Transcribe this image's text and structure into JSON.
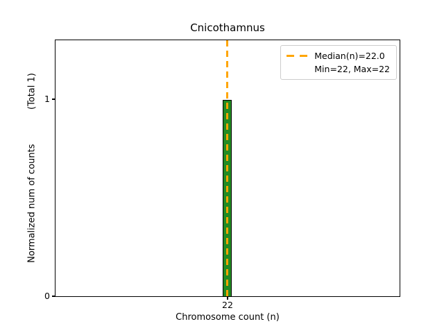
{
  "figure": {
    "title": "Cnicothamnus",
    "xlabel": "Chromosome count (n)",
    "ylabel": "Normalized num of counts            (Total 1)",
    "colors": {
      "bar_fill": "#228B22",
      "bar_edge": "#000000",
      "median_line": "#FFA500",
      "legend_border": "#cccccc"
    }
  },
  "axes": {
    "yticks": [
      "1",
      "0"
    ],
    "xticks": [
      "22"
    ]
  },
  "legend": {
    "median_label": "Median(n)=22.0",
    "minmax_label": "Min=22, Max=22"
  },
  "chart_data": {
    "type": "bar",
    "categories": [
      22
    ],
    "values": [
      1
    ],
    "title": "Cnicothamnus",
    "xlabel": "Chromosome count (n)",
    "ylabel": "Normalized num of counts (Total 1)",
    "total_counts": 1,
    "ylim": [
      0,
      1.3
    ],
    "yticks": [
      0,
      1
    ],
    "xticks": [
      22
    ],
    "median": 22.0,
    "min": 22,
    "max": 22,
    "bar_color": "#228B22",
    "bar_edge_color": "#000000",
    "median_line_color": "#FFA500",
    "median_line_style": "dashed",
    "legend_position": "upper right",
    "grid": false
  }
}
